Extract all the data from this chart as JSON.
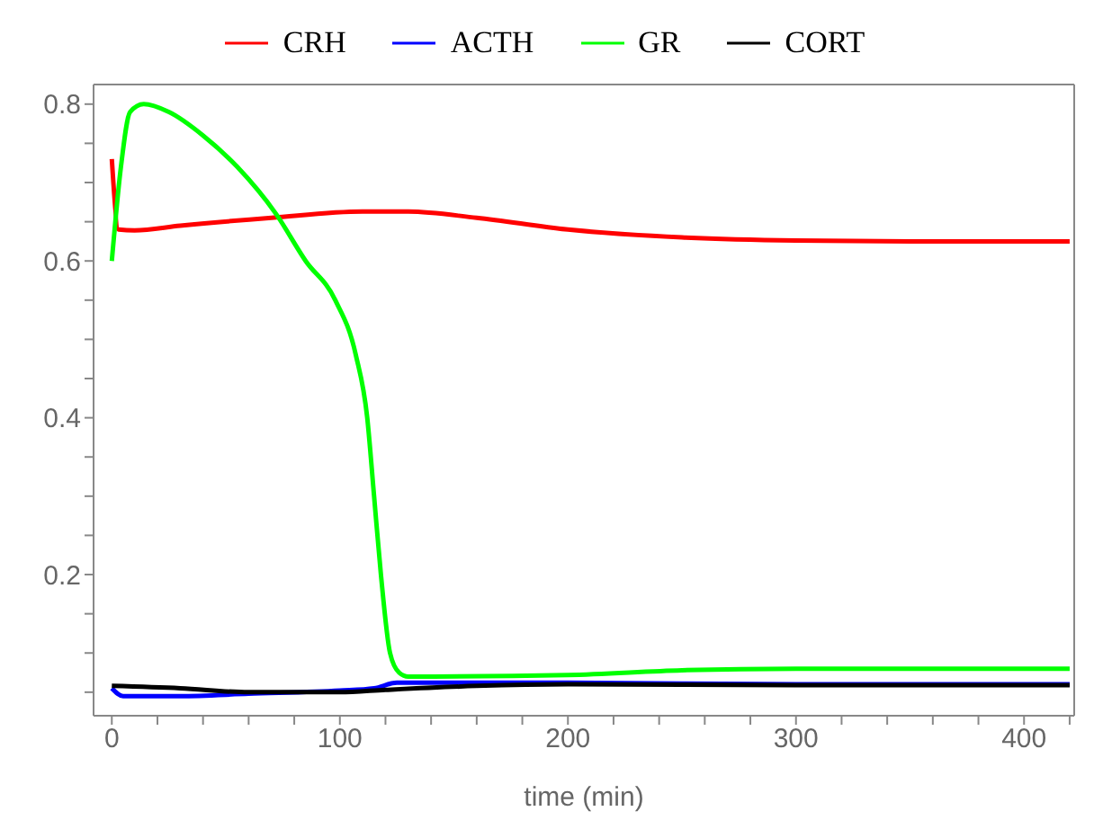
{
  "chart_data": {
    "type": "line",
    "xlabel": "time (min)",
    "legend": "top",
    "grid": false,
    "marker": "none",
    "line_style": "solid",
    "xlim": [
      -8,
      422
    ],
    "ylim": [
      0.02,
      0.825
    ],
    "xticks": [
      0,
      {
        "value": 20,
        "label": null
      },
      {
        "value": 40,
        "label": null
      },
      {
        "value": 60,
        "label": null
      },
      {
        "value": 80,
        "label": null
      },
      100,
      {
        "value": 120,
        "label": null
      },
      {
        "value": 140,
        "label": null
      },
      {
        "value": 160,
        "label": null
      },
      {
        "value": 180,
        "label": null
      },
      200,
      {
        "value": 220,
        "label": null
      },
      {
        "value": 240,
        "label": null
      },
      {
        "value": 260,
        "label": null
      },
      {
        "value": 280,
        "label": null
      },
      300,
      {
        "value": 320,
        "label": null
      },
      {
        "value": 340,
        "label": null
      },
      {
        "value": 360,
        "label": null
      },
      {
        "value": 380,
        "label": null
      },
      400,
      {
        "value": 420,
        "label": null
      }
    ],
    "yticks": [
      {
        "value": 0.05,
        "label": null
      },
      {
        "value": 0.1,
        "label": null
      },
      {
        "value": 0.15,
        "label": null
      },
      0.2,
      {
        "value": 0.25,
        "label": null
      },
      {
        "value": 0.3,
        "label": null
      },
      {
        "value": 0.35,
        "label": null
      },
      0.4,
      {
        "value": 0.45,
        "label": null
      },
      {
        "value": 0.5,
        "label": null
      },
      {
        "value": 0.55,
        "label": null
      },
      0.6,
      {
        "value": 0.65,
        "label": null
      },
      {
        "value": 0.7,
        "label": null
      },
      {
        "value": 0.75,
        "label": null
      },
      0.8
    ],
    "series": [
      {
        "name": "CRH",
        "color": "#ff0000",
        "x": [
          0,
          3,
          10,
          30,
          70,
          110,
          130,
          160,
          200,
          250,
          300,
          350,
          420
        ],
        "values": [
          0.73,
          0.64,
          0.639,
          0.645,
          0.655,
          0.663,
          0.663,
          0.655,
          0.64,
          0.63,
          0.626,
          0.625,
          0.625
        ]
      },
      {
        "name": "ACTH",
        "color": "#0000ff",
        "x": [
          0,
          5,
          30,
          60,
          100,
          115,
          125,
          200,
          300,
          420
        ],
        "values": [
          0.055,
          0.045,
          0.045,
          0.048,
          0.052,
          0.055,
          0.062,
          0.062,
          0.06,
          0.06
        ]
      },
      {
        "name": "GR",
        "color": "#00ff00",
        "x": [
          0,
          4,
          8,
          14,
          25,
          40,
          55,
          72,
          85,
          98,
          107,
          112,
          115,
          118,
          122,
          126,
          130,
          200,
          250,
          300,
          420
        ],
        "values": [
          0.6,
          0.72,
          0.79,
          0.8,
          0.79,
          0.76,
          0.72,
          0.66,
          0.6,
          0.55,
          0.48,
          0.4,
          0.3,
          0.2,
          0.1,
          0.075,
          0.07,
          0.072,
          0.078,
          0.08,
          0.08
        ]
      },
      {
        "name": "CORT",
        "color": "#000000",
        "x": [
          0,
          30,
          60,
          100,
          120,
          160,
          200,
          300,
          420
        ],
        "values": [
          0.058,
          0.055,
          0.05,
          0.05,
          0.053,
          0.058,
          0.06,
          0.059,
          0.059
        ]
      }
    ]
  }
}
